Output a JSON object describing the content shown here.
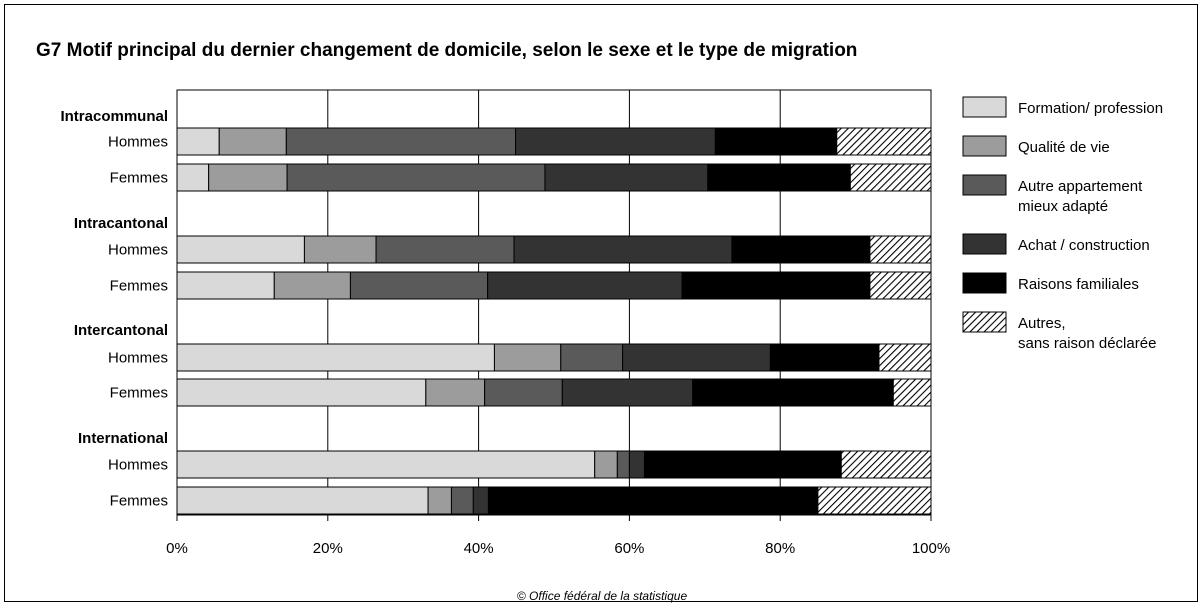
{
  "title": "G7  Motif principal du dernier changement de domicile, selon le sexe et le type de migration",
  "source": "© Office fédéral de la statistique",
  "chart_data": {
    "type": "bar",
    "orientation": "horizontal",
    "stacked": true,
    "x_ticks": [
      "0%",
      "20%",
      "40%",
      "60%",
      "80%",
      "100%"
    ],
    "xlim": [
      0,
      100
    ],
    "grid": "vertical gridlines",
    "legend_position": "right",
    "groups": [
      {
        "name": "Intracommunal",
        "rows": [
          "Hommes",
          "Femmes"
        ]
      },
      {
        "name": "Intracantonal",
        "rows": [
          "Hommes",
          "Femmes"
        ]
      },
      {
        "name": "Intercantonal",
        "rows": [
          "Hommes",
          "Femmes"
        ]
      },
      {
        "name": "International",
        "rows": [
          "Hommes",
          "Femmes"
        ]
      }
    ],
    "series": [
      {
        "name": "Formation/ profession",
        "fill": "#d9d9d9",
        "values": [
          5.6,
          4.2,
          16.9,
          12.9,
          42.1,
          33.0,
          55.4,
          33.3
        ]
      },
      {
        "name": "Qualité de vie",
        "fill": "#9c9c9c",
        "values": [
          8.9,
          10.4,
          9.5,
          10.1,
          8.8,
          7.8,
          3.0,
          3.1
        ]
      },
      {
        "name": "Autre appartement mieux adapté",
        "fill": "#5a5a5a",
        "values": [
          30.4,
          34.2,
          18.3,
          18.2,
          8.2,
          10.3,
          1.6,
          2.9
        ]
      },
      {
        "name": "Achat / construction",
        "fill": "#333333",
        "values": [
          26.5,
          21.6,
          28.9,
          25.8,
          19.6,
          17.3,
          2.0,
          2.0
        ]
      },
      {
        "name": "Raisons familiales",
        "fill": "#000000",
        "values": [
          16.1,
          18.9,
          18.3,
          24.9,
          14.4,
          26.6,
          26.1,
          43.7
        ]
      },
      {
        "name": "Autres, sans raison déclarée",
        "fill": "hatch",
        "values": [
          12.5,
          10.7,
          8.1,
          8.1,
          6.9,
          5.0,
          11.9,
          15.0
        ]
      }
    ]
  }
}
